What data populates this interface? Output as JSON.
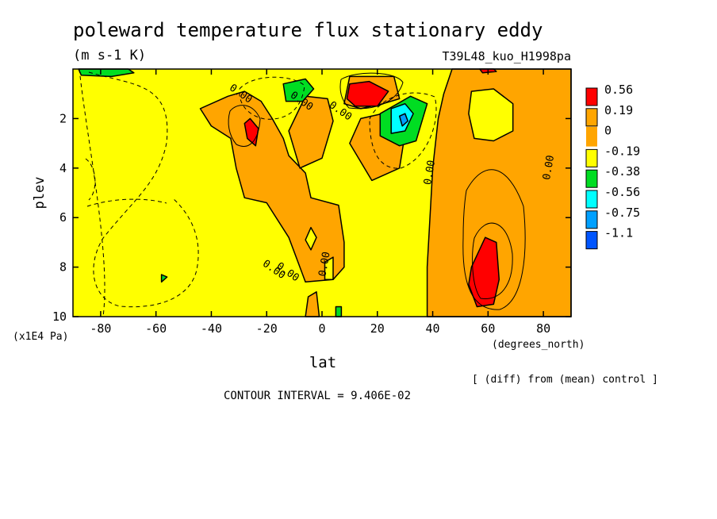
{
  "chart_data": {
    "type": "heatmap",
    "title": "poleward temperature flux stationary eddy",
    "units": "(m s-1 K)",
    "run_label": "T39L48_kuo_H1998pa",
    "xlabel": "lat",
    "x_units": "(degrees_north)",
    "ylabel": "plev",
    "y_units": "(x1E4 Pa)",
    "xlim": [
      -90,
      90
    ],
    "ylim": [
      10,
      0
    ],
    "x_ticks": [
      -80,
      -60,
      -40,
      -20,
      0,
      20,
      40,
      60,
      80
    ],
    "y_ticks": [
      2,
      4,
      6,
      8,
      10
    ],
    "contour_interval": "CONTOUR INTERVAL = 9.406E-02",
    "note": "[ (diff) from (mean) control ]",
    "contour_labels": [
      "0.00",
      "0.00",
      "0.00",
      "0.00",
      "0.00",
      "0.00",
      "0.00",
      "0.00"
    ],
    "legend": [
      {
        "label": "0.56",
        "color": "#ff0000"
      },
      {
        "label": "0.19",
        "color": "#ffa500"
      },
      {
        "label": "0",
        "color": "#ffa500"
      },
      {
        "label": "-0.19",
        "color": "#ffff00"
      },
      {
        "label": "-0.38",
        "color": "#00dd22"
      },
      {
        "label": "-0.56",
        "color": "#00ffff"
      },
      {
        "label": "-0.75",
        "color": "#00a0ff"
      },
      {
        "label": "-1.1",
        "color": "#0055ff"
      }
    ],
    "regions": [
      {
        "level": "orange",
        "points": [
          [
            47,
            0
          ],
          [
            90,
            0
          ],
          [
            90,
            10
          ],
          [
            38,
            10
          ],
          [
            38,
            8
          ],
          [
            40,
            4
          ],
          [
            42,
            2
          ],
          [
            44,
            1
          ]
        ]
      },
      {
        "level": "orange",
        "points": [
          [
            10,
            0.3
          ],
          [
            26,
            0.3
          ],
          [
            28,
            1.2
          ],
          [
            22,
            1.4
          ],
          [
            14,
            1.6
          ],
          [
            8,
            1.4
          ]
        ]
      },
      {
        "level": "orange",
        "points": [
          [
            -44,
            1.6
          ],
          [
            -34,
            1.1
          ],
          [
            -28,
            0.9
          ],
          [
            -22,
            1.3
          ],
          [
            -18,
            2.0
          ],
          [
            -14,
            2.8
          ],
          [
            -12,
            3.5
          ],
          [
            -6,
            4.2
          ],
          [
            -4,
            5.2
          ],
          [
            6,
            5.5
          ],
          [
            8,
            7.0
          ],
          [
            8,
            8.0
          ],
          [
            4,
            8.5
          ],
          [
            -6,
            8.6
          ],
          [
            -12,
            6.8
          ],
          [
            -20,
            5.4
          ],
          [
            -28,
            5.2
          ],
          [
            -31,
            4.0
          ],
          [
            -33,
            2.8
          ],
          [
            -40,
            2.3
          ]
        ]
      },
      {
        "level": "orange",
        "points": [
          [
            -6,
            1.1
          ],
          [
            2,
            1.2
          ],
          [
            4,
            2.1
          ],
          [
            0,
            3.6
          ],
          [
            -8,
            4.0
          ],
          [
            -12,
            2.5
          ]
        ]
      },
      {
        "level": "orange",
        "points": [
          [
            26,
            1.7
          ],
          [
            30,
            2.6
          ],
          [
            28,
            4.0
          ],
          [
            18,
            4.5
          ],
          [
            10,
            3.0
          ],
          [
            14,
            2.0
          ]
        ]
      },
      {
        "level": "orange",
        "points": [
          [
            -5,
            9.2
          ],
          [
            -2,
            9.0
          ],
          [
            -1,
            10
          ],
          [
            -6,
            10
          ]
        ]
      },
      {
        "level": "yellow",
        "points": [
          [
            54,
            0.9
          ],
          [
            62,
            0.8
          ],
          [
            69,
            1.4
          ],
          [
            69,
            2.5
          ],
          [
            62,
            2.9
          ],
          [
            55,
            2.8
          ],
          [
            53,
            1.8
          ]
        ]
      },
      {
        "level": "yellow",
        "points": [
          [
            -6,
            6.9
          ],
          [
            -4,
            6.4
          ],
          [
            -2,
            6.8
          ],
          [
            -4,
            7.3
          ]
        ]
      },
      {
        "level": "yellow",
        "points": [
          [
            1,
            7.8
          ],
          [
            4,
            7.6
          ],
          [
            4,
            8.5
          ],
          [
            1,
            8.5
          ]
        ]
      },
      {
        "level": "red",
        "points": [
          [
            54,
            8.0
          ],
          [
            59,
            6.8
          ],
          [
            63,
            7.0
          ],
          [
            64,
            8.5
          ],
          [
            62,
            9.5
          ],
          [
            56,
            9.6
          ],
          [
            53,
            8.7
          ]
        ]
      },
      {
        "level": "red",
        "points": [
          [
            -28,
            2.2
          ],
          [
            -26,
            2.0
          ],
          [
            -23,
            2.4
          ],
          [
            -24,
            3.1
          ],
          [
            -27,
            2.8
          ]
        ]
      },
      {
        "level": "red",
        "points": [
          [
            10,
            0.6
          ],
          [
            17,
            0.5
          ],
          [
            24,
            0.9
          ],
          [
            20,
            1.5
          ],
          [
            12,
            1.5
          ],
          [
            9,
            1.2
          ]
        ]
      },
      {
        "level": "red",
        "points": [
          [
            57,
            0.0
          ],
          [
            62,
            0.0
          ],
          [
            63,
            0.1
          ],
          [
            58,
            0.15
          ]
        ]
      },
      {
        "level": "green",
        "points": [
          [
            21,
            1.8
          ],
          [
            32,
            1.1
          ],
          [
            38,
            1.4
          ],
          [
            34,
            2.9
          ],
          [
            28,
            3.1
          ],
          [
            21,
            2.7
          ]
        ]
      },
      {
        "level": "green",
        "points": [
          [
            -14,
            0.6
          ],
          [
            -6,
            0.4
          ],
          [
            -3,
            0.8
          ],
          [
            -7,
            1.3
          ],
          [
            -13,
            1.3
          ]
        ]
      },
      {
        "level": "green",
        "points": [
          [
            -88,
            0.0
          ],
          [
            -70,
            0.0
          ],
          [
            -68,
            0.15
          ],
          [
            -76,
            0.3
          ],
          [
            -87,
            0.25
          ]
        ]
      },
      {
        "level": "green",
        "points": [
          [
            -58,
            8.3
          ],
          [
            -56,
            8.4
          ],
          [
            -58,
            8.6
          ]
        ]
      },
      {
        "level": "green",
        "points": [
          [
            5,
            9.6
          ],
          [
            7,
            9.6
          ],
          [
            7,
            10
          ],
          [
            5,
            10
          ]
        ]
      },
      {
        "level": "cyan",
        "points": [
          [
            25,
            1.6
          ],
          [
            30,
            1.4
          ],
          [
            33,
            1.8
          ],
          [
            30,
            2.5
          ],
          [
            25,
            2.6
          ]
        ]
      },
      {
        "level": "blue",
        "points": [
          [
            28,
            1.9
          ],
          [
            30,
            1.8
          ],
          [
            31,
            2.1
          ],
          [
            29,
            2.3
          ]
        ]
      }
    ]
  }
}
